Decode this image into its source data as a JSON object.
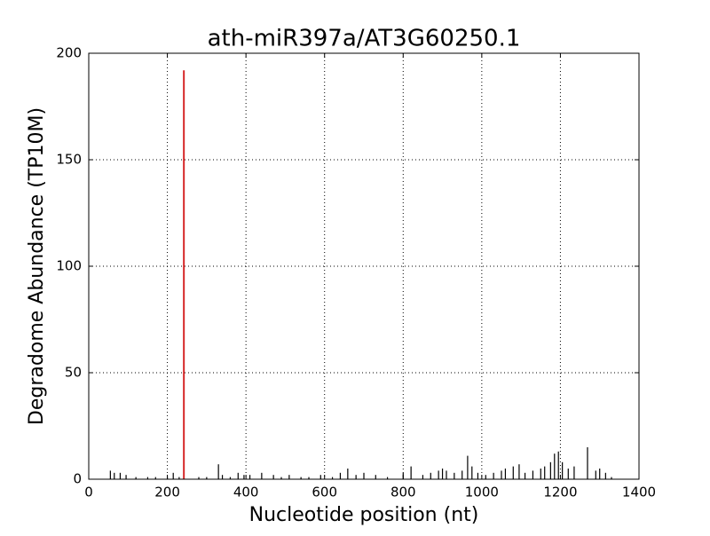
{
  "chart_data": {
    "type": "stem",
    "title": "ath-miR397a/AT3G60250.1",
    "xlabel": "Nucleotide position (nt)",
    "ylabel": "Degradome Abundance (TP10M)",
    "xlim": [
      0,
      1400
    ],
    "ylim": [
      0,
      200
    ],
    "xticks": [
      0,
      200,
      400,
      600,
      800,
      1000,
      1200,
      1400
    ],
    "yticks": [
      0,
      50,
      100,
      150,
      200
    ],
    "grid": true,
    "series": [
      {
        "color": "#000000",
        "x": [
          55,
          65,
          80,
          95,
          120,
          150,
          170,
          200,
          215,
          230,
          280,
          300,
          330,
          340,
          360,
          380,
          395,
          410,
          440,
          470,
          490,
          510,
          540,
          560,
          590,
          620,
          640,
          659,
          680,
          700,
          730,
          760,
          800,
          820,
          850,
          870,
          890,
          900,
          910,
          930,
          950,
          964,
          975,
          990,
          1010,
          1030,
          1050,
          1060,
          1080,
          1095,
          1110,
          1130,
          1150,
          1160,
          1175,
          1185,
          1195,
          1205,
          1220,
          1235,
          1269,
          1290,
          1300,
          1315,
          1330
        ],
        "values": [
          4,
          3,
          3,
          2,
          1,
          1,
          1,
          1,
          3,
          1,
          1,
          1,
          7,
          2,
          1,
          3,
          2,
          2,
          3,
          2,
          1,
          2,
          1,
          1,
          2,
          1,
          3,
          5,
          2,
          3,
          2,
          1,
          3,
          6,
          2,
          3,
          4,
          5,
          4,
          3,
          4,
          11,
          6,
          3,
          2,
          3,
          4,
          5,
          6,
          7,
          3,
          4,
          5,
          6,
          8,
          12,
          13,
          8,
          5,
          6,
          15,
          4,
          5,
          3,
          1
        ]
      },
      {
        "color": "#d62728",
        "x": [
          242
        ],
        "values": [
          192
        ]
      }
    ]
  }
}
